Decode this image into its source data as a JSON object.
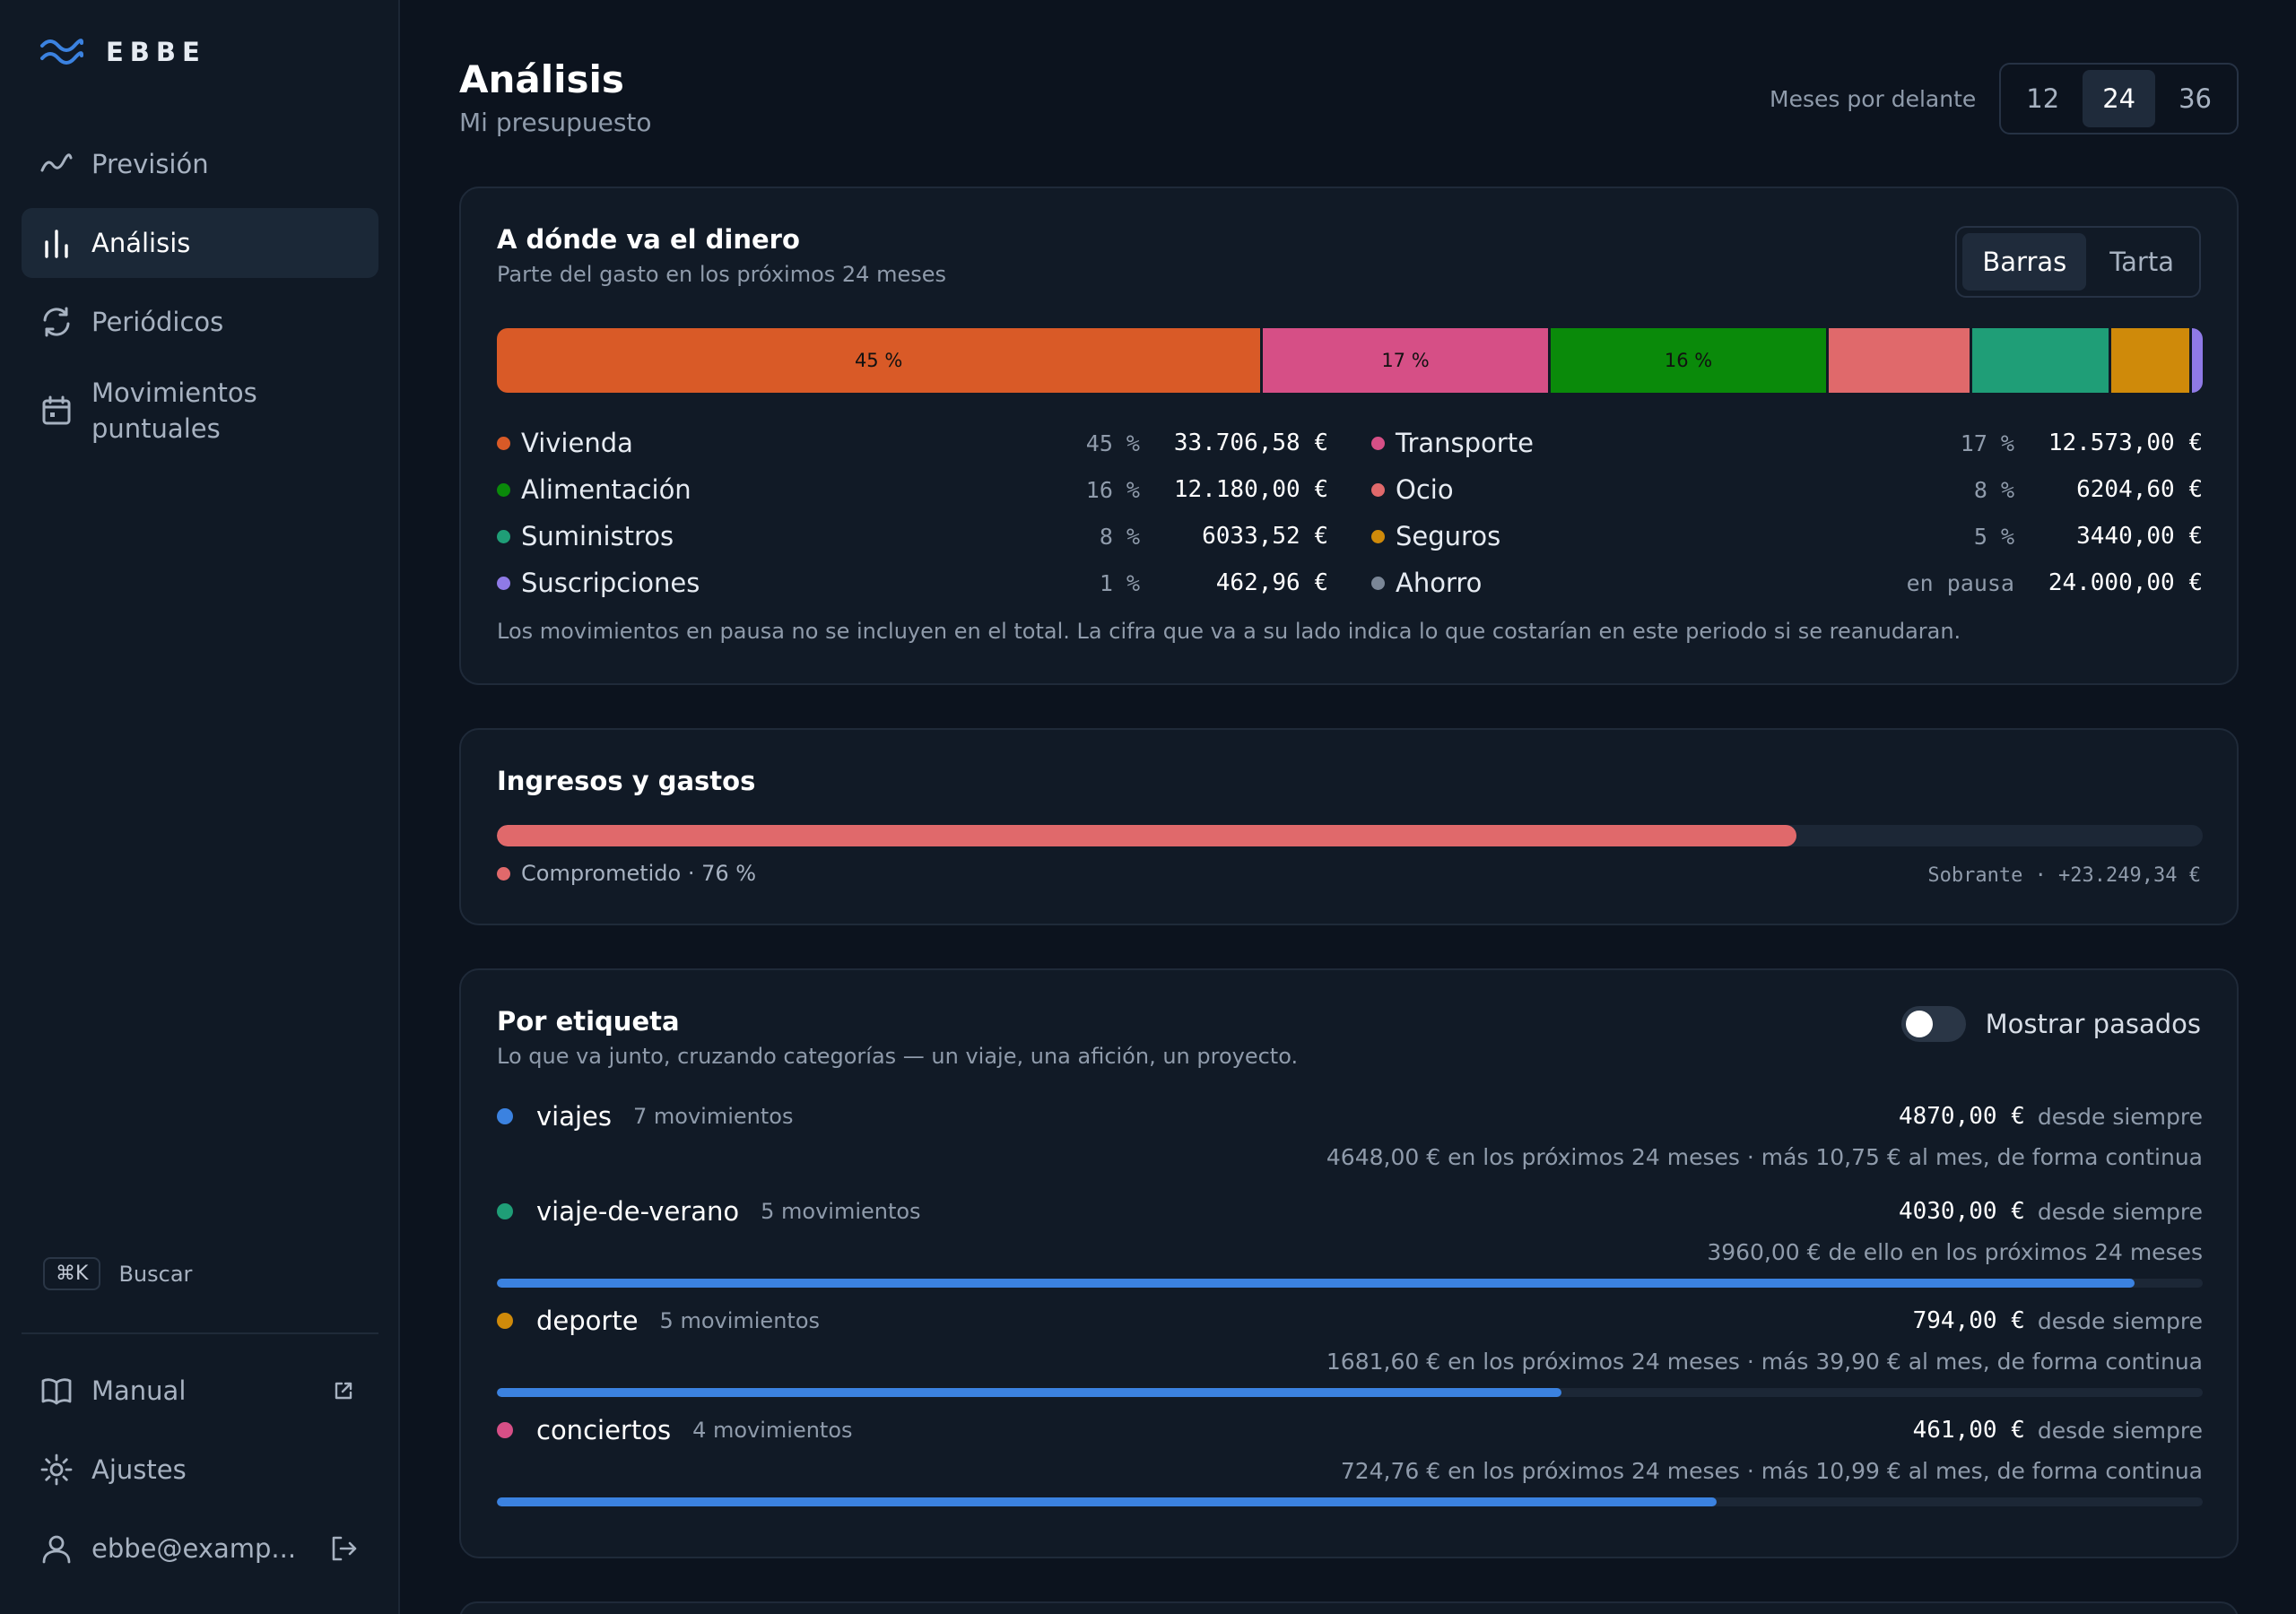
{
  "brand": {
    "name": "EBBE"
  },
  "nav": [
    {
      "label": "Previsión",
      "icon": "trend-line-icon"
    },
    {
      "label": "Análisis",
      "icon": "bar-chart-icon",
      "active": true
    },
    {
      "label": "Periódicos",
      "icon": "refresh-icon"
    },
    {
      "label": "Movimientos puntuales",
      "icon": "calendar-icon"
    }
  ],
  "search": {
    "shortcut": "⌘K",
    "label": "Buscar"
  },
  "bottom_nav": {
    "manual": "Manual",
    "settings": "Ajustes",
    "user": "ebbe@examp..."
  },
  "header": {
    "title": "Análisis",
    "subtitle": "Mi presupuesto",
    "months_label": "Meses por delante",
    "months_options": [
      "12",
      "24",
      "36"
    ],
    "months_selected": "24"
  },
  "spending": {
    "title": "A dónde va el dinero",
    "subtitle": "Parte del gasto en los próximos 24 meses",
    "view_options": [
      "Barras",
      "Tarta"
    ],
    "view_selected": "Barras",
    "note": "Los movimientos en pausa no se incluyen en el total. La cifra que va a su lado indica lo que costarían en este periodo si se reanudaran."
  },
  "chart_data": {
    "type": "bar",
    "stacked": true,
    "categories": [
      "Vivienda",
      "Transporte",
      "Alimentación",
      "Ocio",
      "Suministros",
      "Seguros",
      "Suscripciones",
      "Ahorro"
    ],
    "percent_labels": [
      "45 %",
      "17 %",
      "16 %",
      "8 %",
      "8 %",
      "5 %",
      "1 %",
      "en pausa"
    ],
    "amount_labels": [
      "33.706,58 €",
      "12.573,00 €",
      "12.180,00 €",
      "6204,60 €",
      "6033,52 €",
      "3440,00 €",
      "462,96 €",
      "24.000,00 €"
    ],
    "values": [
      33706.58,
      12573.0,
      12180.0,
      6204.6,
      6033.52,
      3440.0,
      462.96,
      24000.0
    ],
    "paused": [
      false,
      false,
      false,
      false,
      false,
      false,
      false,
      true
    ],
    "colors": [
      "#d95a27",
      "#d64f86",
      "#0a8a0a",
      "#e0696b",
      "#1f9e77",
      "#cf8a0a",
      "#8f7ae6",
      "#7a8696"
    ],
    "bar_labels": [
      "45 %",
      "17 %",
      "16 %",
      "",
      "",
      "",
      "",
      ""
    ]
  },
  "income": {
    "title": "Ingresos y gastos",
    "committed_label": "Comprometido · 76 %",
    "committed_fraction": 0.762,
    "surplus": "Sobrante · +23.249,34 €",
    "color": "#e0696b"
  },
  "tags": {
    "title": "Por etiqueta",
    "subtitle": "Lo que va junto, cruzando categorías — un viaje, una afición, un proyecto.",
    "toggle_label": "Mostrar pasados",
    "items": [
      {
        "name": "viajes",
        "count": "7 movimientos",
        "total": "4870,00 €",
        "since": "desde siempre",
        "detail": "4648,00 € en los próximos 24 meses · más 10,75 € al mes, de forma continua",
        "color": "#3b82e0",
        "bar": null
      },
      {
        "name": "viaje-de-verano",
        "count": "5 movimientos",
        "total": "4030,00 €",
        "since": "desde siempre",
        "detail": "3960,00 € de ello en los próximos 24 meses",
        "color": "#1f9e77",
        "bar": 0.96
      },
      {
        "name": "deporte",
        "count": "5 movimientos",
        "total": "794,00 €",
        "since": "desde siempre",
        "detail": "1681,60 € en los próximos 24 meses · más 39,90 € al mes, de forma continua",
        "color": "#cf8a0a",
        "bar": 0.624
      },
      {
        "name": "conciertos",
        "count": "4 movimientos",
        "total": "461,00 €",
        "since": "desde siempre",
        "detail": "724,76 € en los próximos 24 meses · más 10,99 € al mes, de forma continua",
        "color": "#d64f86",
        "bar": 0.715
      }
    ]
  }
}
